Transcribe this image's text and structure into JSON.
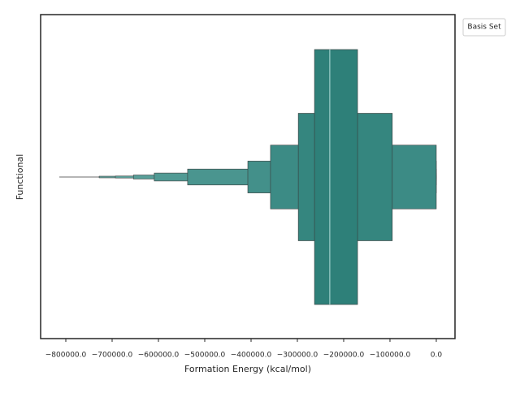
{
  "chart_data": {
    "type": "boxen",
    "xlabel": "Formation Energy (kcal/mol)",
    "ylabel": "Functional",
    "legend_title": "Basis Set",
    "median": -230000,
    "boxes": [
      {
        "lower": -263000,
        "upper": -170000,
        "color": "#2e8079"
      },
      {
        "lower": -298000,
        "upper": -95000,
        "color": "#35867f"
      },
      {
        "lower": -358000,
        "upper": 0,
        "color": "#3c8b85"
      },
      {
        "lower": -407000,
        "upper": 0,
        "color": "#43908a"
      },
      {
        "lower": -537000,
        "upper": 0,
        "color": "#4a958f"
      },
      {
        "lower": -609000,
        "upper": 0,
        "color": "#519a94"
      },
      {
        "lower": -654000,
        "upper": 0,
        "color": "#589f99"
      },
      {
        "lower": -693000,
        "upper": 0,
        "color": "#5fa49e"
      },
      {
        "lower": -728000,
        "upper": 0,
        "color": "#66a9a3"
      }
    ],
    "outlier_min": -814000,
    "xlim": [
      -854400,
      40400
    ],
    "xticks": [
      {
        "value": -800000,
        "label": "−800000.0"
      },
      {
        "value": -700000,
        "label": "−700000.0"
      },
      {
        "value": -600000,
        "label": "−600000.0"
      },
      {
        "value": -500000,
        "label": "−500000.0"
      },
      {
        "value": -400000,
        "label": "−400000.0"
      },
      {
        "value": -300000,
        "label": "−300000.0"
      },
      {
        "value": -200000,
        "label": "−200000.0"
      },
      {
        "value": -100000,
        "label": "−100000.0"
      },
      {
        "value": 0,
        "label": "0.0"
      }
    ]
  }
}
